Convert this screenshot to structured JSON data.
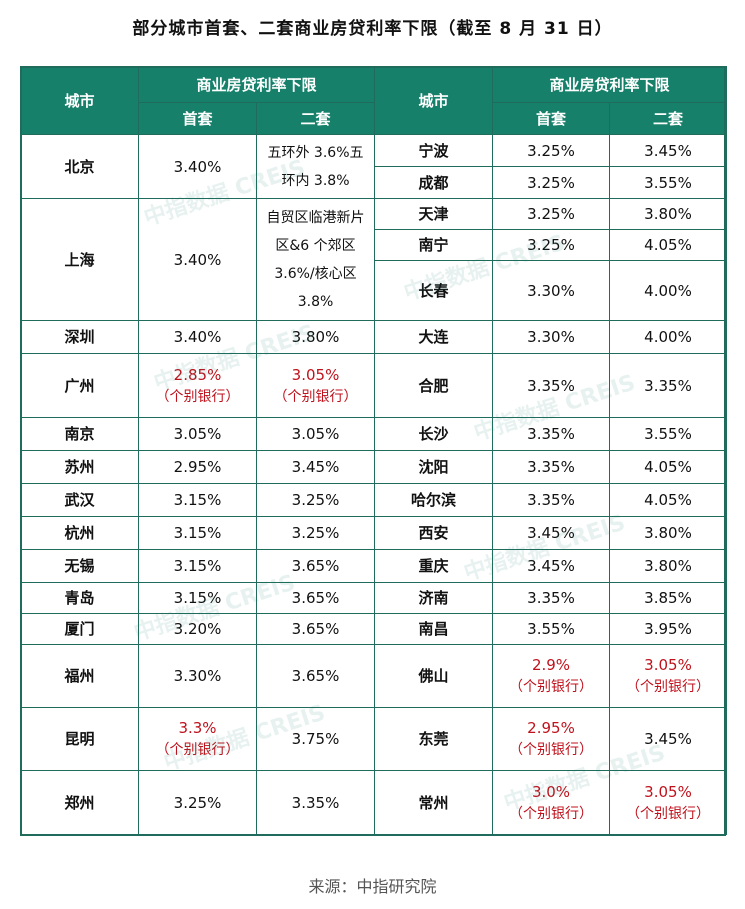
{
  "title": "部分城市首套、二套商业房贷利率下限（截至 8 月 31 日）",
  "header": {
    "city": "城市",
    "group": "商业房贷利率下限",
    "first": "首套",
    "second": "二套"
  },
  "left_rows": [
    {
      "city": "北京",
      "first": "3.40%",
      "second": "五环外 3.6%五环内 3.8%",
      "h": 64,
      "note": true
    },
    {
      "city": "上海",
      "first": "3.40%",
      "second": "自贸区临港新片区&6 个郊区 3.6%/核心区 3.8%",
      "h": 122,
      "note": true
    },
    {
      "city": "深圳",
      "first": "3.40%",
      "second": "3.80%",
      "h": 33
    },
    {
      "city": "广州",
      "first": "2.85%",
      "first_sub": "（个别银行）",
      "second": "3.05%",
      "second_sub": "（个别银行）",
      "h": 64,
      "red": true
    },
    {
      "city": "南京",
      "first": "3.05%",
      "second": "3.05%",
      "h": 33
    },
    {
      "city": "苏州",
      "first": "2.95%",
      "second": "3.45%",
      "h": 33
    },
    {
      "city": "武汉",
      "first": "3.15%",
      "second": "3.25%",
      "h": 33
    },
    {
      "city": "杭州",
      "first": "3.15%",
      "second": "3.25%",
      "h": 33
    },
    {
      "city": "无锡",
      "first": "3.15%",
      "second": "3.65%",
      "h": 33
    },
    {
      "city": "青岛",
      "first": "3.15%",
      "second": "3.65%",
      "h": 31
    },
    {
      "city": "厦门",
      "first": "3.20%",
      "second": "3.65%",
      "h": 31
    },
    {
      "city": "福州",
      "first": "3.30%",
      "second": "3.65%",
      "h": 63
    },
    {
      "city": "昆明",
      "first": "3.3%",
      "first_sub": "（个别银行）",
      "second": "3.75%",
      "h": 63,
      "red_first": true
    },
    {
      "city": "郑州",
      "first": "3.25%",
      "second": "3.35%",
      "h": 64
    }
  ],
  "right_rows": [
    {
      "city": "宁波",
      "first": "3.25%",
      "second": "3.45%",
      "h": 32
    },
    {
      "city": "成都",
      "first": "3.25%",
      "second": "3.55%",
      "h": 32
    },
    {
      "city": "天津",
      "first": "3.25%",
      "second": "3.80%",
      "h": 31
    },
    {
      "city": "南宁",
      "first": "3.25%",
      "second": "4.05%",
      "h": 31
    },
    {
      "city": "长春",
      "first": "3.30%",
      "second": "4.00%",
      "h": 60
    },
    {
      "city": "大连",
      "first": "3.30%",
      "second": "4.00%",
      "h": 33
    },
    {
      "city": "合肥",
      "first": "3.35%",
      "second": "3.35%",
      "h": 64
    },
    {
      "city": "长沙",
      "first": "3.35%",
      "second": "3.55%",
      "h": 33
    },
    {
      "city": "沈阳",
      "first": "3.35%",
      "second": "4.05%",
      "h": 33
    },
    {
      "city": "哈尔滨",
      "first": "3.35%",
      "second": "4.05%",
      "h": 33
    },
    {
      "city": "西安",
      "first": "3.45%",
      "second": "3.80%",
      "h": 33
    },
    {
      "city": "重庆",
      "first": "3.45%",
      "second": "3.80%",
      "h": 33
    },
    {
      "city": "济南",
      "first": "3.35%",
      "second": "3.85%",
      "h": 31
    },
    {
      "city": "南昌",
      "first": "3.55%",
      "second": "3.95%",
      "h": 31
    },
    {
      "city": "佛山",
      "first": "2.9%",
      "first_sub": "（个别银行）",
      "second": "3.05%",
      "second_sub": "（个别银行）",
      "h": 63,
      "red": true
    },
    {
      "city": "东莞",
      "first": "2.95%",
      "first_sub": "（个别银行）",
      "second": "3.45%",
      "h": 63,
      "red_first": true
    },
    {
      "city": "常州",
      "first": "3.0%",
      "first_sub": "（个别银行）",
      "second": "3.05%",
      "second_sub": "（个别银行）",
      "h": 64,
      "red": true
    }
  ],
  "watermark": "中指数据 CREIS",
  "source": "来源：中指研究院"
}
